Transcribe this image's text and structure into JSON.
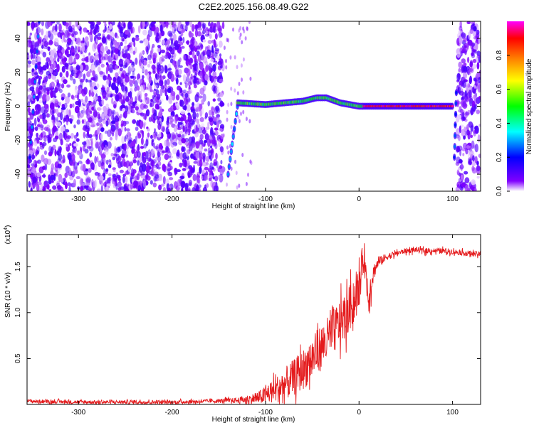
{
  "title": "C2E2.2025.156.08.49.G22",
  "colorbar": {
    "label": "Normalized spectral amplitude",
    "ticks": [
      "0.0",
      "0.2",
      "0.4",
      "0.6",
      "0.8"
    ],
    "tick_values": [
      0.0,
      0.2,
      0.4,
      0.6,
      0.8
    ],
    "range": [
      0,
      1
    ],
    "colors": [
      "#ffffff",
      "#8000ff",
      "#0000ff",
      "#00ffff",
      "#00ff00",
      "#ffff00",
      "#ff8000",
      "#ff0000",
      "#ff00ff"
    ]
  },
  "chart_data": [
    {
      "type": "heatmap",
      "xlabel": "Height of straight line (km)",
      "ylabel": "Frequency (Hz)",
      "xlim": [
        -355,
        130
      ],
      "ylim": [
        -50,
        50
      ],
      "x_ticks": [
        -300,
        -200,
        -100,
        0,
        100
      ],
      "y_ticks": [
        -40,
        -20,
        0,
        20,
        40
      ],
      "x_tick_labels": [
        "-300",
        "-200",
        "-100",
        "0",
        "100"
      ],
      "y_tick_labels": [
        "-40",
        "-20",
        "0",
        "20",
        "40"
      ],
      "noise_regions": [
        [
          -355,
          -145
        ],
        [
          105,
          130
        ]
      ],
      "tracks": [
        {
          "x": [
            -352,
            -342
          ],
          "y": [
            -30,
            50
          ],
          "amplitude": 0.25
        },
        {
          "x": [
            -140,
            -130
          ],
          "y": [
            -40,
            0
          ],
          "amplitude": 0.3
        },
        {
          "x": [
            -130,
            -100,
            -80,
            -60,
            -45,
            -35,
            -20,
            -10,
            0,
            100
          ],
          "y": [
            2,
            1,
            2,
            3,
            5,
            5,
            2,
            1,
            0,
            0
          ],
          "amplitude": 0.5
        },
        {
          "x": [
            5,
            100
          ],
          "y": [
            0,
            0
          ],
          "amplitude": 0.9
        },
        {
          "x": [
            102,
            104
          ],
          "y": [
            -30,
            8
          ],
          "amplitude": 0.25
        }
      ],
      "colorbar_label": "Normalized spectral amplitude"
    },
    {
      "type": "line",
      "xlabel": "Height of straight line (km)",
      "ylabel": "SNR (10 * v/v)",
      "ylabel_multiplier": "(x10",
      "ylabel_exponent": "4",
      "ylabel_multiplier_close": ")",
      "xlim": [
        -355,
        130
      ],
      "ylim": [
        0,
        1.85
      ],
      "x_ticks": [
        -300,
        -200,
        -100,
        0,
        100
      ],
      "y_ticks": [
        0.5,
        1.0,
        1.5
      ],
      "x_tick_labels": [
        "-300",
        "-200",
        "-100",
        "0",
        "100"
      ],
      "y_tick_labels": [
        "0.5",
        "1.0",
        "1.5"
      ],
      "color": "#e41a1c",
      "series": [
        {
          "x": [
            -355,
            -300,
            -250,
            -200,
            -160,
            -130,
            -110,
            -100,
            -90,
            -80,
            -70,
            -60,
            -50,
            -40,
            -30,
            -20,
            -10,
            0,
            5,
            10,
            15,
            20,
            30,
            40,
            50,
            60,
            70,
            80,
            90,
            100,
            110,
            120,
            130
          ],
          "y": [
            0.04,
            0.03,
            0.03,
            0.03,
            0.04,
            0.05,
            0.08,
            0.12,
            0.18,
            0.25,
            0.33,
            0.42,
            0.55,
            0.68,
            0.8,
            0.95,
            1.1,
            1.3,
            1.7,
            1.2,
            1.45,
            1.55,
            1.62,
            1.65,
            1.68,
            1.69,
            1.68,
            1.68,
            1.68,
            1.67,
            1.66,
            1.65,
            1.64
          ],
          "noise_amplitude": [
            0.02,
            0.02,
            0.02,
            0.02,
            0.02,
            0.03,
            0.06,
            0.1,
            0.14,
            0.18,
            0.2,
            0.22,
            0.25,
            0.25,
            0.25,
            0.25,
            0.25,
            0.25,
            0.15,
            0.2,
            0.1,
            0.06,
            0.04,
            0.03,
            0.03,
            0.03,
            0.03,
            0.03,
            0.03,
            0.03,
            0.03,
            0.03,
            0.03
          ]
        }
      ]
    }
  ]
}
